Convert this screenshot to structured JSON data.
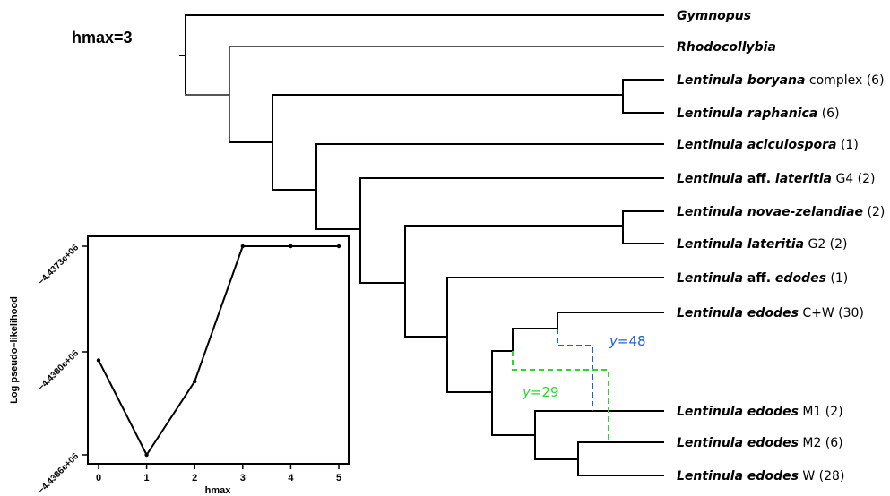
{
  "title": "hmax=3",
  "taxa": [
    {
      "genus": "Gymnopus",
      "epithet": "",
      "suffix": ""
    },
    {
      "genus": "Rhodocollybia",
      "epithet": "",
      "suffix": ""
    },
    {
      "genus": "Lentinula",
      "epithet": "boryana",
      "suffix": "complex (6)"
    },
    {
      "genus": "Lentinula",
      "epithet": "raphanica",
      "suffix": "(6)"
    },
    {
      "genus": "Lentinula",
      "epithet": "aciculospora",
      "suffix": "(1)"
    },
    {
      "genus": "Lentinula",
      "epithet": "aff. lateritia",
      "suffix": "G4 (2)"
    },
    {
      "genus": "Lentinula",
      "epithet": "novae-zelandiae",
      "suffix": "(2)"
    },
    {
      "genus": "Lentinula",
      "epithet": "lateritia",
      "suffix": "G2 (2)"
    },
    {
      "genus": "Lentinula",
      "epithet": "aff. edodes",
      "suffix": "(1)"
    },
    {
      "genus": "Lentinula",
      "epithet": "edodes",
      "suffix": "C+W (30)"
    },
    {
      "genus": "Lentinula",
      "epithet": "edodes",
      "suffix": "M1 (2)"
    },
    {
      "genus": "Lentinula",
      "epithet": "edodes",
      "suffix": "M2 (6)"
    },
    {
      "genus": "Lentinula",
      "epithet": "edodes",
      "suffix": "W (28)"
    }
  ],
  "hybrid_edges": [
    {
      "label_var": "y",
      "label_value": "=48",
      "color": "#1f5fd6"
    },
    {
      "label_var": "y",
      "label_value": "=29",
      "color": "#2fd52f"
    }
  ],
  "chart_data": {
    "type": "line",
    "x": [
      0,
      1,
      2,
      3,
      4,
      5
    ],
    "y": [
      -4438060,
      -4438640,
      -4438190,
      -4437360,
      -4437360,
      -4437360
    ],
    "xlabel": "hmax",
    "ylabel": "Log pseudo–likelihood",
    "x_ticks": [
      "0",
      "1",
      "2",
      "3",
      "4",
      "5"
    ],
    "y_ticks": [
      {
        "value": -4438600,
        "label": "−4.4386e+06"
      },
      {
        "value": -4438000,
        "label": "−4.4380e+06"
      },
      {
        "value": -4437300,
        "label": "−4.4373e+06"
      }
    ],
    "xlim": [
      -0.2,
      5.2
    ],
    "ylim": [
      -4438660,
      -4437290
    ]
  }
}
